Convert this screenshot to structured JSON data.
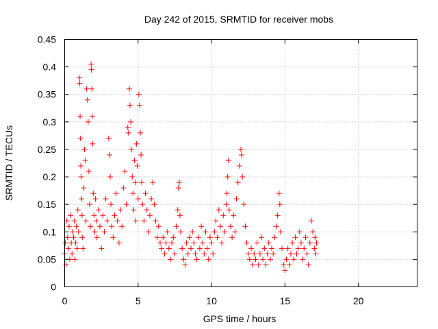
{
  "chart_data": {
    "type": "scatter",
    "title": "Day 242 of 2015, SRMTID for receiver mobs",
    "xlabel": "GPS time / hours",
    "ylabel": "SRMTID / TECUs",
    "xlim": [
      0,
      24
    ],
    "ylim": [
      0,
      0.45
    ],
    "xticks": [
      0,
      5,
      10,
      15,
      20
    ],
    "yticks": [
      0,
      0.05,
      0.1,
      0.15,
      0.2,
      0.25,
      0.3,
      0.35,
      0.4,
      0.45
    ],
    "grid": true,
    "marker": "+",
    "marker_color": "#ff0000",
    "series": [
      {
        "name": "mobs",
        "points": [
          [
            0.0,
            0.06
          ],
          [
            0.05,
            0.08
          ],
          [
            0.1,
            0.04
          ],
          [
            0.15,
            0.12
          ],
          [
            0.2,
            0.09
          ],
          [
            0.25,
            0.07
          ],
          [
            0.3,
            0.11
          ],
          [
            0.35,
            0.05
          ],
          [
            0.4,
            0.13
          ],
          [
            0.45,
            0.08
          ],
          [
            0.5,
            0.06
          ],
          [
            0.55,
            0.1
          ],
          [
            0.6,
            0.09
          ],
          [
            0.65,
            0.12
          ],
          [
            0.7,
            0.05
          ],
          [
            0.75,
            0.08
          ],
          [
            0.8,
            0.11
          ],
          [
            0.85,
            0.07
          ],
          [
            0.9,
            0.14
          ],
          [
            0.95,
            0.1
          ],
          [
            1.0,
            0.38
          ],
          [
            1.02,
            0.37
          ],
          [
            1.05,
            0.31
          ],
          [
            1.08,
            0.27
          ],
          [
            1.1,
            0.22
          ],
          [
            1.12,
            0.2
          ],
          [
            1.15,
            0.16
          ],
          [
            1.18,
            0.13
          ],
          [
            1.2,
            0.09
          ],
          [
            1.25,
            0.07
          ],
          [
            1.3,
            0.18
          ],
          [
            1.35,
            0.25
          ],
          [
            1.4,
            0.23
          ],
          [
            1.45,
            0.12
          ],
          [
            1.5,
            0.36
          ],
          [
            1.55,
            0.34
          ],
          [
            1.6,
            0.3
          ],
          [
            1.65,
            0.21
          ],
          [
            1.7,
            0.15
          ],
          [
            1.75,
            0.11
          ],
          [
            1.8,
            0.405
          ],
          [
            1.82,
            0.395
          ],
          [
            1.85,
            0.36
          ],
          [
            1.88,
            0.31
          ],
          [
            1.9,
            0.26
          ],
          [
            1.95,
            0.17
          ],
          [
            2.0,
            0.13
          ],
          [
            2.05,
            0.1
          ],
          [
            2.1,
            0.16
          ],
          [
            2.15,
            0.12
          ],
          [
            2.2,
            0.09
          ],
          [
            2.3,
            0.14
          ],
          [
            2.4,
            0.11
          ],
          [
            2.5,
            0.07
          ],
          [
            2.6,
            0.13
          ],
          [
            2.7,
            0.1
          ],
          [
            2.8,
            0.16
          ],
          [
            2.9,
            0.12
          ],
          [
            3.0,
            0.27
          ],
          [
            3.05,
            0.24
          ],
          [
            3.1,
            0.2
          ],
          [
            3.15,
            0.15
          ],
          [
            3.2,
            0.11
          ],
          [
            3.3,
            0.09
          ],
          [
            3.4,
            0.13
          ],
          [
            3.5,
            0.17
          ],
          [
            3.6,
            0.12
          ],
          [
            3.7,
            0.08
          ],
          [
            3.8,
            0.14
          ],
          [
            3.9,
            0.11
          ],
          [
            4.0,
            0.18
          ],
          [
            4.1,
            0.21
          ],
          [
            4.2,
            0.15
          ],
          [
            4.3,
            0.29
          ],
          [
            4.35,
            0.28
          ],
          [
            4.4,
            0.36
          ],
          [
            4.45,
            0.33
          ],
          [
            4.5,
            0.3
          ],
          [
            4.55,
            0.25
          ],
          [
            4.6,
            0.2
          ],
          [
            4.65,
            0.17
          ],
          [
            4.7,
            0.14
          ],
          [
            4.75,
            0.23
          ],
          [
            4.8,
            0.19
          ],
          [
            4.85,
            0.12
          ],
          [
            4.9,
            0.26
          ],
          [
            4.95,
            0.22
          ],
          [
            5.0,
            0.16
          ],
          [
            5.05,
            0.35
          ],
          [
            5.1,
            0.33
          ],
          [
            5.15,
            0.28
          ],
          [
            5.2,
            0.24
          ],
          [
            5.25,
            0.19
          ],
          [
            5.3,
            0.15
          ],
          [
            5.4,
            0.12
          ],
          [
            5.5,
            0.17
          ],
          [
            5.6,
            0.14
          ],
          [
            5.7,
            0.1
          ],
          [
            5.8,
            0.13
          ],
          [
            5.9,
            0.16
          ],
          [
            6.0,
            0.19
          ],
          [
            6.1,
            0.15
          ],
          [
            6.2,
            0.12
          ],
          [
            6.3,
            0.09
          ],
          [
            6.4,
            0.11
          ],
          [
            6.5,
            0.08
          ],
          [
            6.6,
            0.07
          ],
          [
            6.7,
            0.09
          ],
          [
            6.8,
            0.06
          ],
          [
            6.9,
            0.08
          ],
          [
            7.0,
            0.1
          ],
          [
            7.1,
            0.07
          ],
          [
            7.2,
            0.05
          ],
          [
            7.3,
            0.08
          ],
          [
            7.4,
            0.09
          ],
          [
            7.5,
            0.06
          ],
          [
            7.6,
            0.11
          ],
          [
            7.7,
            0.14
          ],
          [
            7.75,
            0.18
          ],
          [
            7.8,
            0.19
          ],
          [
            7.85,
            0.13
          ],
          [
            7.9,
            0.1
          ],
          [
            8.0,
            0.07
          ],
          [
            8.1,
            0.05
          ],
          [
            8.2,
            0.04
          ],
          [
            8.3,
            0.08
          ],
          [
            8.4,
            0.06
          ],
          [
            8.5,
            0.09
          ],
          [
            8.6,
            0.07
          ],
          [
            8.7,
            0.1
          ],
          [
            8.8,
            0.08
          ],
          [
            8.9,
            0.06
          ],
          [
            9.0,
            0.05
          ],
          [
            9.1,
            0.09
          ],
          [
            9.2,
            0.07
          ],
          [
            9.3,
            0.11
          ],
          [
            9.4,
            0.08
          ],
          [
            9.5,
            0.06
          ],
          [
            9.6,
            0.1
          ],
          [
            9.7,
            0.07
          ],
          [
            9.8,
            0.05
          ],
          [
            9.9,
            0.09
          ],
          [
            10.0,
            0.08
          ],
          [
            10.1,
            0.06
          ],
          [
            10.2,
            0.1
          ],
          [
            10.3,
            0.12
          ],
          [
            10.4,
            0.09
          ],
          [
            10.5,
            0.14
          ],
          [
            10.6,
            0.11
          ],
          [
            10.7,
            0.08
          ],
          [
            10.8,
            0.13
          ],
          [
            10.9,
            0.1
          ],
          [
            11.0,
            0.15
          ],
          [
            11.05,
            0.17
          ],
          [
            11.1,
            0.2
          ],
          [
            11.15,
            0.23
          ],
          [
            11.2,
            0.14
          ],
          [
            11.3,
            0.11
          ],
          [
            11.4,
            0.09
          ],
          [
            11.5,
            0.13
          ],
          [
            11.6,
            0.1
          ],
          [
            11.7,
            0.16
          ],
          [
            11.8,
            0.19
          ],
          [
            11.9,
            0.22
          ],
          [
            12.0,
            0.25
          ],
          [
            12.05,
            0.24
          ],
          [
            12.1,
            0.2
          ],
          [
            12.2,
            0.15
          ],
          [
            12.3,
            0.11
          ],
          [
            12.4,
            0.08
          ],
          [
            12.5,
            0.06
          ],
          [
            12.6,
            0.05
          ],
          [
            12.7,
            0.07
          ],
          [
            12.8,
            0.04
          ],
          [
            12.9,
            0.06
          ],
          [
            13.0,
            0.05
          ],
          [
            13.1,
            0.08
          ],
          [
            13.2,
            0.04
          ],
          [
            13.3,
            0.06
          ],
          [
            13.4,
            0.09
          ],
          [
            13.5,
            0.05
          ],
          [
            13.6,
            0.07
          ],
          [
            13.7,
            0.04
          ],
          [
            13.8,
            0.06
          ],
          [
            13.9,
            0.08
          ],
          [
            14.0,
            0.05
          ],
          [
            14.1,
            0.07
          ],
          [
            14.2,
            0.06
          ],
          [
            14.3,
            0.09
          ],
          [
            14.4,
            0.11
          ],
          [
            14.5,
            0.13
          ],
          [
            14.6,
            0.17
          ],
          [
            14.65,
            0.15
          ],
          [
            14.7,
            0.1
          ],
          [
            14.8,
            0.07
          ],
          [
            14.9,
            0.04
          ],
          [
            15.0,
            0.03
          ],
          [
            15.1,
            0.05
          ],
          [
            15.2,
            0.07
          ],
          [
            15.3,
            0.04
          ],
          [
            15.4,
            0.06
          ],
          [
            15.5,
            0.08
          ],
          [
            15.6,
            0.05
          ],
          [
            15.7,
            0.09
          ],
          [
            15.8,
            0.06
          ],
          [
            15.9,
            0.07
          ],
          [
            16.0,
            0.1
          ],
          [
            16.1,
            0.08
          ],
          [
            16.2,
            0.05
          ],
          [
            16.3,
            0.07
          ],
          [
            16.4,
            0.09
          ],
          [
            16.5,
            0.06
          ],
          [
            16.6,
            0.04
          ],
          [
            16.7,
            0.08
          ],
          [
            16.8,
            0.12
          ],
          [
            16.9,
            0.1
          ],
          [
            17.0,
            0.07
          ],
          [
            17.05,
            0.09
          ],
          [
            17.1,
            0.06
          ],
          [
            17.15,
            0.08
          ]
        ]
      }
    ]
  }
}
